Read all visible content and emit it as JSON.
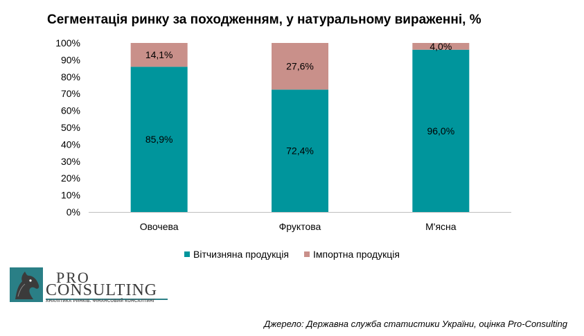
{
  "colors": {
    "domestic": "#00959c",
    "import": "#c9908a",
    "grid": "#d9d9d9",
    "axis": "#bfbfbf"
  },
  "chart_data": {
    "type": "bar",
    "stacked": true,
    "title": "Сегментація ринку за походженням, у натуральному вираженні, %",
    "categories": [
      "Овочева",
      "Фруктова",
      "М'ясна"
    ],
    "series": [
      {
        "name": "Вітчизняна продукція",
        "values": [
          85.9,
          72.4,
          96.0
        ],
        "labels": [
          "85,9%",
          "72,4%",
          "96,0%"
        ]
      },
      {
        "name": "Імпортна продукція",
        "values": [
          14.1,
          27.6,
          4.0
        ],
        "labels": [
          "14,1%",
          "27,6%",
          "4,0%"
        ]
      }
    ],
    "y_ticks": [
      "0%",
      "10%",
      "20%",
      "30%",
      "40%",
      "50%",
      "60%",
      "70%",
      "80%",
      "90%",
      "100%"
    ],
    "ylim": [
      0,
      100
    ],
    "grid": false,
    "legend_position": "bottom"
  },
  "logo": {
    "pro": "PRO",
    "consulting": "CONSULTING",
    "tagline": "АНАЛІТИКА РИНКІВ. ФІНАНСОВИЙ КОНСАЛТИНГ"
  },
  "source": "Джерело: Державна служба статистики України, оцінка Pro-Consulting"
}
